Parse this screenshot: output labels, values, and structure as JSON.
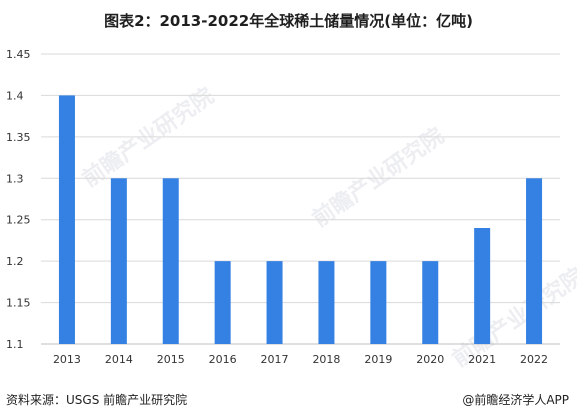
{
  "title": "图表2：2013-2022年全球稀土储量情况(单位：亿吨)",
  "source": "资料来源：USGS 前瞻产业研究院",
  "credit": "@前瞻经济学人APP",
  "watermark": "前瞻产业研究院",
  "colors": {
    "bar": "#3480E3",
    "grid": "#D9D9D9",
    "axis": "#BFBFBF"
  },
  "chart_data": {
    "type": "bar",
    "categories": [
      "2013",
      "2014",
      "2015",
      "2016",
      "2017",
      "2018",
      "2019",
      "2020",
      "2021",
      "2022"
    ],
    "values": [
      1.4,
      1.3,
      1.3,
      1.2,
      1.2,
      1.2,
      1.2,
      1.2,
      1.24,
      1.3
    ],
    "ylim": [
      1.1,
      1.45
    ],
    "yticks": [
      "1.1",
      "1.15",
      "1.2",
      "1.25",
      "1.3",
      "1.35",
      "1.4",
      "1.45"
    ],
    "xlabel": "",
    "ylabel": "",
    "grid": true
  }
}
